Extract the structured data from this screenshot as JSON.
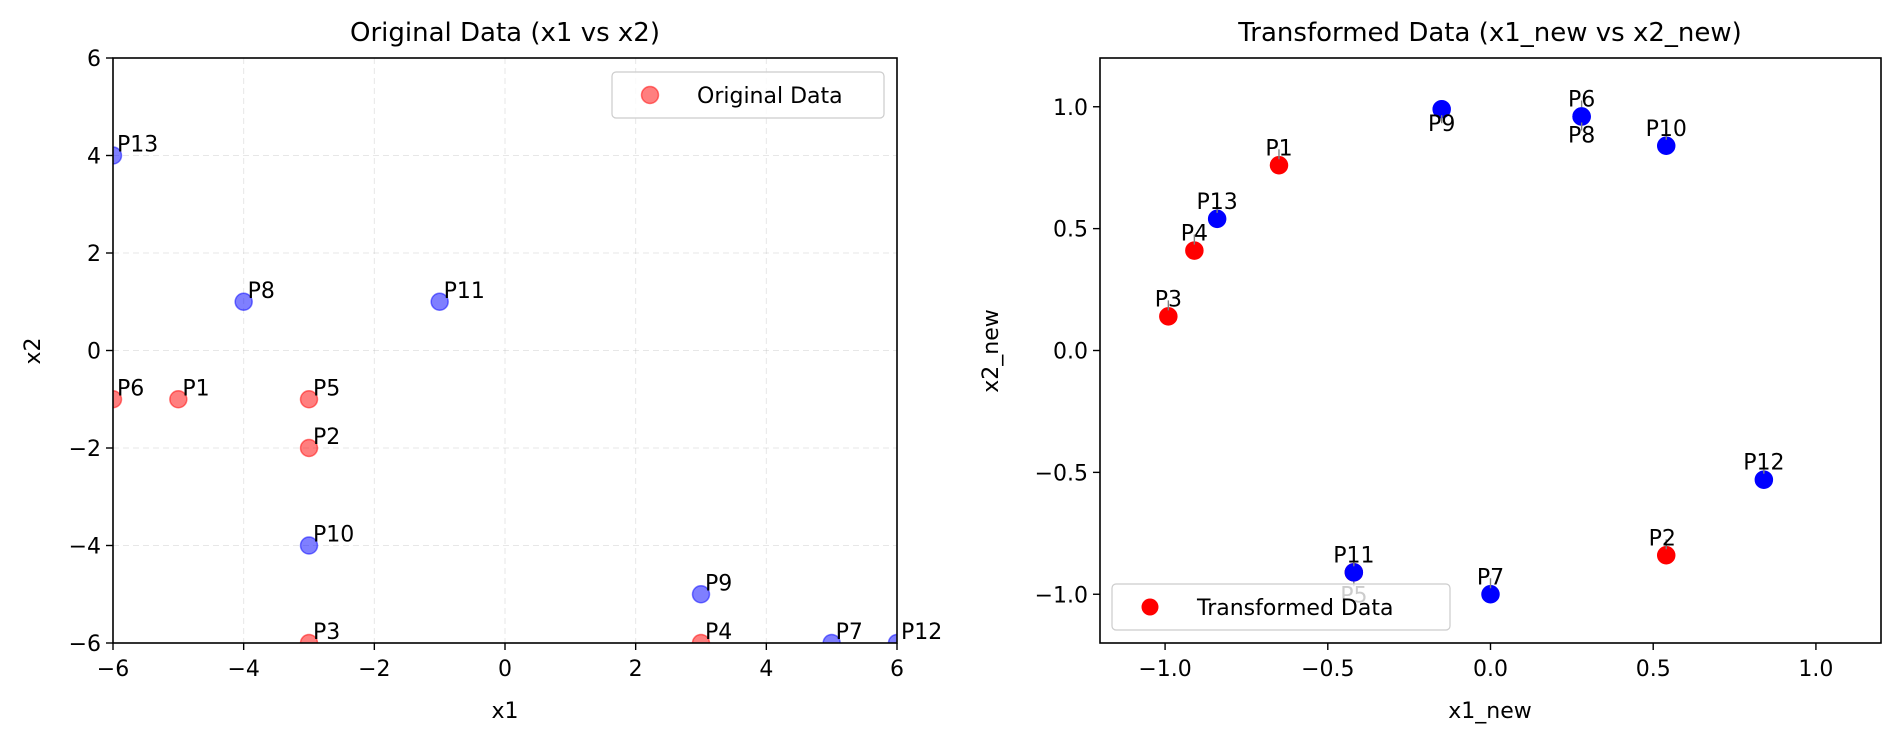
{
  "colors": {
    "red": "#ff0000",
    "blue": "#0000ff",
    "axis": "#000000",
    "grid": "#b0b0b0",
    "arrow": "#808080"
  },
  "chart_data": [
    {
      "type": "scatter",
      "title": "Original Data (x1 vs x2)",
      "xlabel": "x1",
      "ylabel": "x2",
      "xlim": [
        -6,
        6
      ],
      "ylim": [
        -6,
        6
      ],
      "xticks": [
        -6,
        -4,
        -2,
        0,
        2,
        4,
        6
      ],
      "yticks": [
        -6,
        -4,
        -2,
        0,
        2,
        4,
        6
      ],
      "xtick_labels": [
        "−6",
        "−4",
        "−2",
        "0",
        "2",
        "4",
        "6"
      ],
      "ytick_labels": [
        "−6",
        "−4",
        "−2",
        "0",
        "2",
        "4",
        "6"
      ],
      "grid": true,
      "legend": {
        "label": "Original Data",
        "placement": "upper right",
        "marker_color": "red"
      },
      "marker_alpha": 0.5,
      "points": [
        {
          "label": "P1",
          "x": -5,
          "y": -1,
          "class": "red"
        },
        {
          "label": "P2",
          "x": -3,
          "y": -2,
          "class": "red"
        },
        {
          "label": "P3",
          "x": -3,
          "y": -6,
          "class": "red"
        },
        {
          "label": "P4",
          "x": 3,
          "y": -6,
          "class": "red"
        },
        {
          "label": "P5",
          "x": -3,
          "y": -1,
          "class": "red"
        },
        {
          "label": "P6",
          "x": -6,
          "y": -1,
          "class": "red"
        },
        {
          "label": "P7",
          "x": 5,
          "y": -6,
          "class": "blue"
        },
        {
          "label": "P8",
          "x": -4,
          "y": 1,
          "class": "blue"
        },
        {
          "label": "P9",
          "x": 3,
          "y": -5,
          "class": "blue"
        },
        {
          "label": "P10",
          "x": -3,
          "y": -4,
          "class": "blue"
        },
        {
          "label": "P11",
          "x": -1,
          "y": 1,
          "class": "blue"
        },
        {
          "label": "P12",
          "x": 6,
          "y": -6,
          "class": "blue"
        },
        {
          "label": "P13",
          "x": -6,
          "y": 4,
          "class": "blue"
        }
      ]
    },
    {
      "type": "scatter",
      "title": "Transformed Data (x1_new vs x2_new)",
      "xlabel": "x1_new",
      "ylabel": "x2_new",
      "xlim": [
        -1.2,
        1.2
      ],
      "ylim": [
        -1.2,
        1.2
      ],
      "xticks": [
        -1.0,
        -0.5,
        0.0,
        0.5,
        1.0
      ],
      "yticks": [
        -1.0,
        -0.5,
        0.0,
        0.5,
        1.0
      ],
      "xtick_labels": [
        "−1.0",
        "−0.5",
        "0.0",
        "0.5",
        "1.0"
      ],
      "ytick_labels": [
        "−1.0",
        "−0.5",
        "0.0",
        "0.5",
        "1.0"
      ],
      "grid": false,
      "legend": {
        "label": "Transformed Data",
        "placement": "lower left",
        "marker_color": "red"
      },
      "marker_alpha": 1,
      "points": [
        {
          "label": "P1",
          "x": -0.65,
          "y": 0.76,
          "class": "red"
        },
        {
          "label": "P2",
          "x": 0.54,
          "y": -0.84,
          "class": "red"
        },
        {
          "label": "P3",
          "x": -0.99,
          "y": 0.14,
          "class": "red"
        },
        {
          "label": "P4",
          "x": -0.91,
          "y": 0.41,
          "class": "red"
        },
        {
          "label": "P5",
          "x": -0.42,
          "y": -0.91,
          "class": "red"
        },
        {
          "label": "P6",
          "x": 0.28,
          "y": 0.96,
          "class": "blue"
        },
        {
          "label": "P7",
          "x": 0.0,
          "y": -1.0,
          "class": "blue"
        },
        {
          "label": "P8",
          "x": 0.28,
          "y": 0.96,
          "class": "blue"
        },
        {
          "label": "P9",
          "x": -0.15,
          "y": 0.99,
          "class": "blue"
        },
        {
          "label": "P10",
          "x": 0.54,
          "y": 0.84,
          "class": "blue"
        },
        {
          "label": "P11",
          "x": -0.42,
          "y": -0.91,
          "class": "blue"
        },
        {
          "label": "P12",
          "x": 0.84,
          "y": -0.53,
          "class": "blue"
        },
        {
          "label": "P13",
          "x": -0.84,
          "y": 0.54,
          "class": "blue"
        }
      ]
    }
  ]
}
